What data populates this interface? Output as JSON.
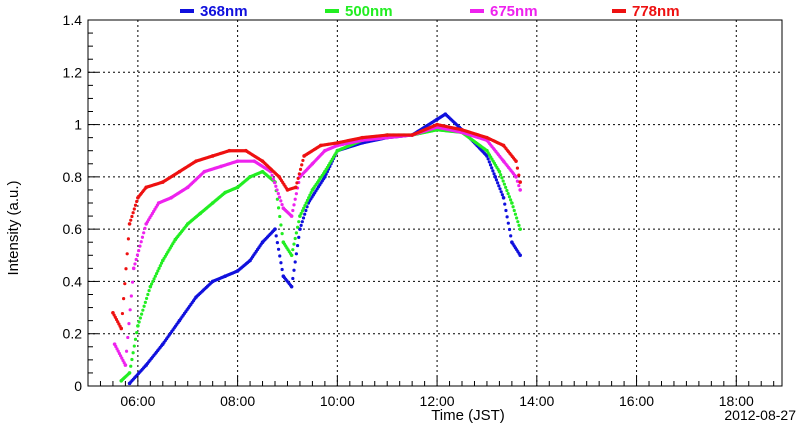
{
  "chart_data": {
    "type": "scatter",
    "xlabel": "Time (JST)",
    "ylabel": "Intensity (a.u.)",
    "date_label": "2012-08-27",
    "xlim": [
      "05:00",
      "18:55"
    ],
    "ylim": [
      0,
      1.4
    ],
    "x_ticks": [
      "06:00",
      "08:00",
      "10:00",
      "12:00",
      "14:00",
      "16:00",
      "18:00"
    ],
    "y_ticks": [
      "0",
      "0.2",
      "0.4",
      "0.6",
      "0.8",
      "1",
      "1.2",
      "1.4"
    ],
    "grid": true,
    "legend_position": "top",
    "series": [
      {
        "name": "368nm",
        "color": "#1010dd",
        "x": [
          "05:50",
          "06:10",
          "06:30",
          "06:50",
          "07:10",
          "07:30",
          "07:45",
          "08:00",
          "08:15",
          "08:30",
          "08:45",
          "08:55",
          "09:05",
          "09:15",
          "09:25",
          "09:45",
          "10:00",
          "10:30",
          "11:00",
          "11:30",
          "12:00",
          "12:10",
          "12:30",
          "13:00",
          "13:10",
          "13:20",
          "13:30",
          "13:40"
        ],
        "y": [
          0.01,
          0.08,
          0.16,
          0.25,
          0.34,
          0.4,
          0.42,
          0.44,
          0.48,
          0.55,
          0.6,
          0.42,
          0.38,
          0.6,
          0.7,
          0.8,
          0.9,
          0.93,
          0.95,
          0.96,
          1.02,
          1.04,
          0.98,
          0.88,
          0.8,
          0.72,
          0.55,
          0.5
        ]
      },
      {
        "name": "500nm",
        "color": "#22ee22",
        "x": [
          "05:40",
          "05:50",
          "06:00",
          "06:15",
          "06:30",
          "06:45",
          "07:00",
          "07:15",
          "07:30",
          "07:45",
          "08:00",
          "08:15",
          "08:30",
          "08:45",
          "08:55",
          "09:05",
          "09:15",
          "09:30",
          "09:45",
          "10:00",
          "10:30",
          "11:00",
          "11:30",
          "12:00",
          "12:30",
          "13:00",
          "13:15",
          "13:30",
          "13:40"
        ],
        "y": [
          0.02,
          0.05,
          0.23,
          0.38,
          0.48,
          0.56,
          0.62,
          0.66,
          0.7,
          0.74,
          0.76,
          0.8,
          0.82,
          0.78,
          0.55,
          0.5,
          0.65,
          0.75,
          0.82,
          0.9,
          0.94,
          0.96,
          0.96,
          0.98,
          0.97,
          0.9,
          0.82,
          0.7,
          0.6
        ]
      },
      {
        "name": "675nm",
        "color": "#ee22ee",
        "x": [
          "05:32",
          "05:45",
          "05:55",
          "06:10",
          "06:25",
          "06:40",
          "07:00",
          "07:20",
          "07:40",
          "08:00",
          "08:20",
          "08:40",
          "08:55",
          "09:05",
          "09:15",
          "09:30",
          "09:45",
          "10:00",
          "10:30",
          "11:00",
          "11:30",
          "12:00",
          "12:30",
          "13:00",
          "13:20",
          "13:35",
          "13:40"
        ],
        "y": [
          0.16,
          0.08,
          0.45,
          0.62,
          0.7,
          0.72,
          0.76,
          0.82,
          0.84,
          0.86,
          0.86,
          0.82,
          0.68,
          0.65,
          0.8,
          0.85,
          0.9,
          0.92,
          0.94,
          0.95,
          0.96,
          0.99,
          0.97,
          0.94,
          0.86,
          0.8,
          0.75
        ]
      },
      {
        "name": "778nm",
        "color": "#ee1111",
        "x": [
          "05:30",
          "05:40",
          "05:50",
          "06:00",
          "06:10",
          "06:30",
          "06:50",
          "07:10",
          "07:30",
          "07:50",
          "08:10",
          "08:30",
          "08:50",
          "09:00",
          "09:10",
          "09:20",
          "09:40",
          "10:00",
          "10:30",
          "11:00",
          "11:30",
          "12:00",
          "12:30",
          "13:00",
          "13:20",
          "13:35",
          "13:40"
        ],
        "y": [
          0.28,
          0.22,
          0.62,
          0.72,
          0.76,
          0.78,
          0.82,
          0.86,
          0.88,
          0.9,
          0.9,
          0.86,
          0.8,
          0.75,
          0.76,
          0.88,
          0.92,
          0.93,
          0.95,
          0.96,
          0.96,
          1.0,
          0.98,
          0.95,
          0.92,
          0.86,
          0.78
        ]
      }
    ]
  }
}
